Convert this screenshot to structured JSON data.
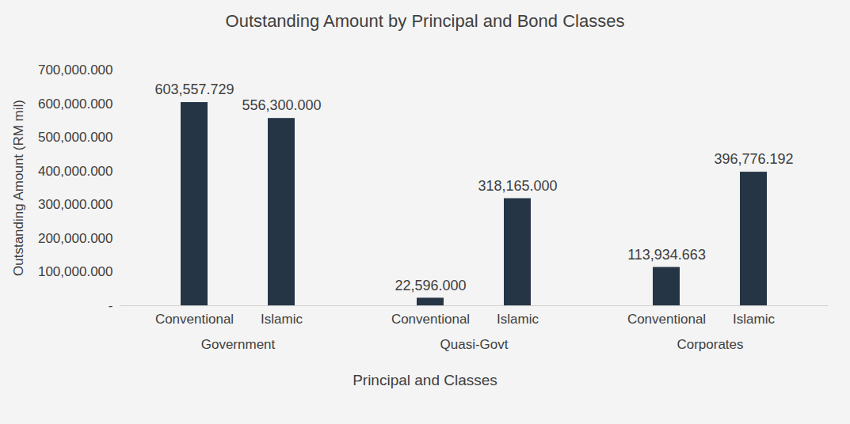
{
  "chart_data": {
    "type": "bar",
    "title": "Outstanding Amount by Principal and Bond Classes",
    "x_label": "Principal and Classes",
    "y_label": "Outstanding Amount (RM mil)",
    "categories": [
      "Conventional",
      "Islamic",
      "Conventional",
      "Islamic",
      "Conventional",
      "Islamic"
    ],
    "groups": [
      "Government",
      "Government",
      "Quasi-Govt",
      "Quasi-Govt",
      "Corporates",
      "Corporates"
    ],
    "values": [
      603557.729,
      556300,
      22596,
      318165,
      113934.663,
      396776.192
    ],
    "value_labels": [
      "603,557.729",
      "556,300.000",
      "22,596.000",
      "318,165.000",
      "113,934.663",
      "396,776.192"
    ],
    "color": "#253545",
    "ylim": [
      0,
      700000
    ],
    "yticks": [
      {
        "value": 0,
        "label": "-"
      },
      {
        "value": 100000,
        "label": "100,000.000"
      },
      {
        "value": 200000,
        "label": "200,000.000"
      },
      {
        "value": 300000,
        "label": "300,000.000"
      },
      {
        "value": 400000,
        "label": "400,000.000"
      },
      {
        "value": 500000,
        "label": "500,000.000"
      },
      {
        "value": 600000,
        "label": "600,000.000"
      },
      {
        "value": 700000,
        "label": "700,000.000"
      }
    ],
    "grid": false,
    "data_labels": true
  }
}
